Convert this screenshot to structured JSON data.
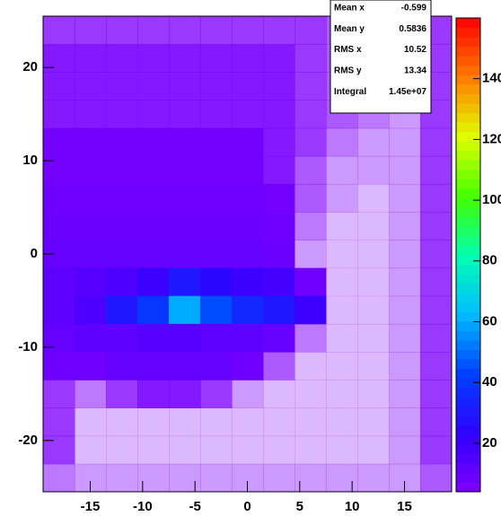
{
  "chart_data": {
    "type": "heatmap",
    "xbins": [
      -19.5,
      -16.5,
      -13.5,
      -10.5,
      -7.5,
      -4.5,
      -1.5,
      1.5,
      4.5,
      7.5,
      10.5,
      13.5,
      16.5,
      19.5
    ],
    "ybins": [
      25.5,
      22.5,
      19.5,
      16.5,
      13.5,
      10.5,
      7.5,
      4.5,
      1.5,
      -1.5,
      -4.5,
      -7.5,
      -10.5,
      -13.5,
      -16.5,
      -19.5,
      -22.5,
      -25.5
    ],
    "values": [
      [
        5,
        5,
        5,
        5,
        5,
        5,
        5,
        5,
        5,
        4,
        3,
        2,
        5
      ],
      [
        6,
        6,
        6,
        6,
        6,
        6,
        6,
        6,
        5,
        4,
        3,
        2,
        5
      ],
      [
        6,
        6,
        6,
        6,
        6,
        6,
        6,
        6,
        5,
        4,
        3,
        2,
        5
      ],
      [
        6,
        6,
        6,
        6,
        6,
        6,
        6,
        6,
        5,
        4,
        3,
        2,
        5
      ],
      [
        7,
        7,
        7,
        7,
        7,
        7,
        7,
        6,
        5,
        3,
        2,
        2,
        5
      ],
      [
        7,
        7,
        7,
        7,
        7,
        7,
        7,
        6,
        4,
        2,
        2,
        2,
        5
      ],
      [
        8,
        8,
        8,
        8,
        8,
        8,
        8,
        7,
        4,
        2,
        1,
        2,
        5
      ],
      [
        9,
        9,
        9,
        9,
        9,
        9,
        9,
        8,
        3,
        1,
        1,
        2,
        5
      ],
      [
        10,
        10,
        10,
        10,
        10,
        10,
        10,
        9,
        2,
        1,
        1,
        2,
        5
      ],
      [
        12,
        14,
        16,
        20,
        30,
        25,
        20,
        18,
        8,
        1,
        1,
        2,
        5
      ],
      [
        12,
        16,
        30,
        40,
        60,
        45,
        35,
        30,
        20,
        1,
        1,
        2,
        5
      ],
      [
        10,
        12,
        12,
        14,
        14,
        12,
        12,
        10,
        3,
        1,
        1,
        2,
        5
      ],
      [
        8,
        8,
        10,
        10,
        10,
        10,
        8,
        4,
        1,
        1,
        1,
        2,
        5
      ],
      [
        5,
        3,
        5,
        6,
        6,
        5,
        2,
        1,
        1,
        1,
        1,
        2,
        5
      ],
      [
        5,
        1,
        1,
        1,
        1,
        1,
        1,
        1,
        1,
        1,
        1,
        2,
        5
      ],
      [
        5,
        1,
        1,
        1,
        1,
        1,
        1,
        1,
        1,
        1,
        1,
        2,
        5
      ],
      [
        3,
        2,
        2,
        2,
        2,
        2,
        2,
        2,
        2,
        2,
        2,
        2,
        4
      ]
    ],
    "xlim": [
      -19.5,
      19.5
    ],
    "ylim": [
      -25.5,
      25.5
    ],
    "zlim": [
      4,
      160
    ],
    "xticks": [
      -15,
      -10,
      -5,
      0,
      5,
      10,
      15
    ],
    "yticks": [
      -20,
      -10,
      0,
      10,
      20
    ],
    "zticks": [
      20,
      40,
      60,
      80,
      100,
      120,
      140
    ],
    "stats": [
      [
        "Mean x",
        "-0.599"
      ],
      [
        "Mean y",
        "0.5836"
      ],
      [
        "RMS x",
        "10.52"
      ],
      [
        "RMS y",
        "13.34"
      ],
      [
        "Integral",
        "1.45e+07"
      ]
    ]
  }
}
